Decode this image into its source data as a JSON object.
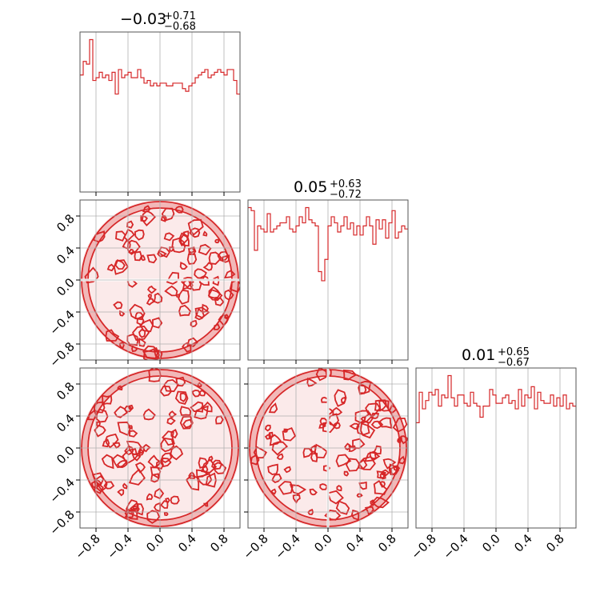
{
  "chart_data": {
    "type": "corner",
    "color": "#d62728",
    "axis_range": [
      -1,
      1
    ],
    "ticks": [
      -0.8,
      -0.4,
      0.0,
      0.4,
      0.8
    ],
    "tick_labels": [
      "−0.8",
      "−0.4",
      "0.0",
      "0.4",
      "0.8"
    ],
    "grid": true,
    "parameters": [
      {
        "title_main": "−0.03",
        "title_plus": "+0.71",
        "title_minus": "−0.68"
      },
      {
        "title_main": "0.05",
        "title_plus": "+0.63",
        "title_minus": "−0.72"
      },
      {
        "title_main": "0.01",
        "title_plus": "+0.65",
        "title_minus": "−0.67"
      }
    ],
    "histograms": [
      {
        "bin_edges_range": [
          -1,
          1
        ],
        "bins": 50,
        "counts": [
          43,
          48,
          47,
          56,
          41,
          42,
          44,
          42,
          43,
          41,
          44,
          36,
          45,
          42,
          43,
          44,
          42,
          42,
          45,
          42,
          40,
          41,
          39,
          40,
          39,
          40,
          40,
          39,
          39,
          40,
          40,
          40,
          38,
          37,
          39,
          40,
          42,
          43,
          44,
          45,
          42,
          43,
          44,
          45,
          44,
          43,
          45,
          45,
          41,
          36
        ]
      },
      {
        "bin_edges_range": [
          -1,
          1
        ],
        "bins": 50,
        "counts": [
          50,
          49,
          36,
          44,
          43,
          42,
          48,
          42,
          43,
          44,
          45,
          45,
          47,
          43,
          42,
          44,
          47,
          45,
          50,
          46,
          45,
          44,
          29,
          26,
          33,
          44,
          47,
          45,
          42,
          44,
          47,
          43,
          45,
          41,
          44,
          41,
          44,
          47,
          44,
          38,
          46,
          43,
          46,
          40,
          45,
          49,
          40,
          42,
          44,
          43
        ]
      },
      {
        "bin_edges_range": [
          -1,
          1
        ],
        "bins": 50,
        "counts": [
          38,
          49,
          43,
          46,
          49,
          48,
          50,
          44,
          48,
          47,
          55,
          47,
          44,
          48,
          48,
          45,
          44,
          49,
          45,
          44,
          40,
          44,
          44,
          50,
          48,
          45,
          45,
          47,
          48,
          45,
          46,
          43,
          50,
          44,
          48,
          47,
          51,
          43,
          49,
          46,
          45,
          45,
          48,
          44,
          47,
          44,
          48,
          43,
          45,
          44
        ]
      }
    ],
    "joint_panels": [
      {
        "x_param": 0,
        "y_param": 1,
        "support": "unit disk",
        "split_line": "y = 0"
      },
      {
        "x_param": 0,
        "y_param": 2,
        "support": "unit disk"
      },
      {
        "x_param": 1,
        "y_param": 2,
        "support": "unit disk",
        "split_line": "x = 0"
      }
    ]
  }
}
